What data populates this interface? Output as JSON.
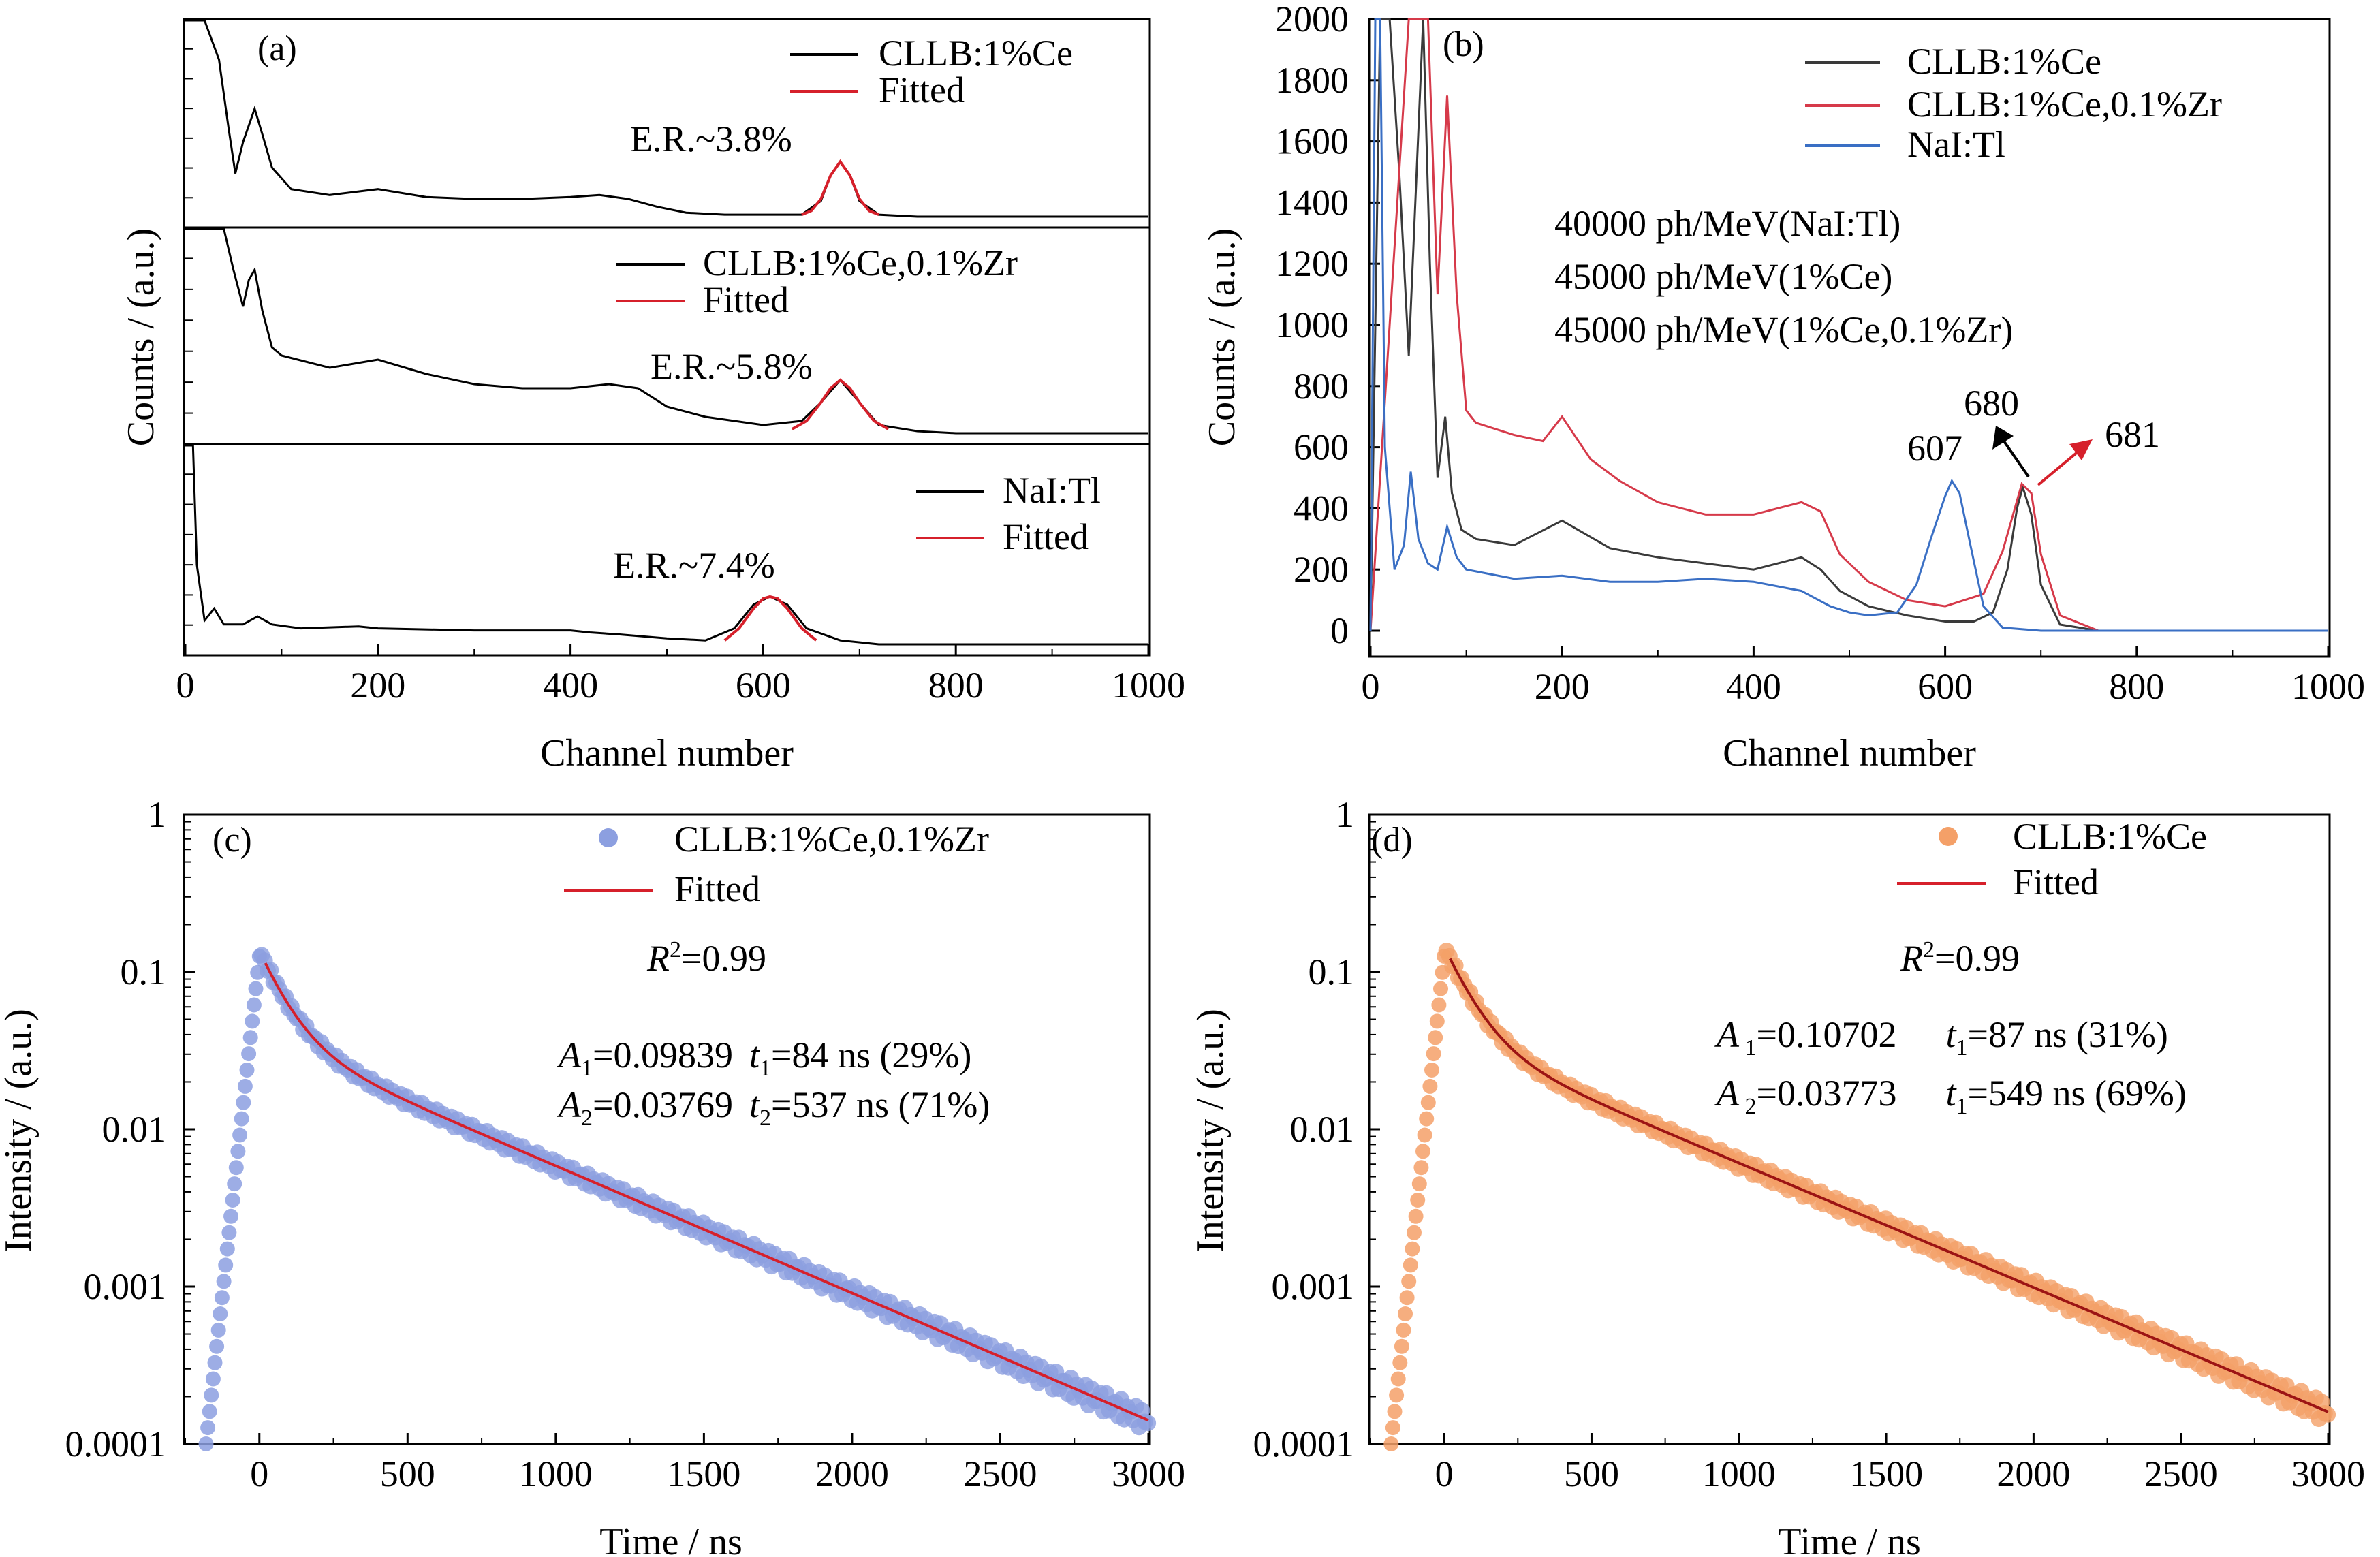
{
  "colors": {
    "black": "#000000",
    "red": "#d6202b",
    "dark_grey": "#3a3a3a",
    "crimson": "#d63a4a",
    "blue": "#3a6fc4",
    "lavender": "#8c9fe0",
    "orange": "#f4a068",
    "dark_red": "#9c1414"
  },
  "chart_data": [
    {
      "panel": "(a)",
      "type": "line",
      "xlabel": "Channel number",
      "ylabel": "Counts / (a.u.)",
      "xlim": [
        0,
        1000
      ],
      "x_ticks": [
        "0",
        "200",
        "400",
        "600",
        "800",
        "1000"
      ],
      "subpanels": [
        {
          "legend": [
            "CLLB:1%Ce",
            "Fitted"
          ],
          "annotation": "E.R.~3.8%",
          "series": [
            {
              "name": "CLLB:1%Ce",
              "x": [
                0,
                20,
                35,
                45,
                52,
                60,
                72,
                80,
                90,
                110,
                150,
                200,
                250,
                300,
                350,
                400,
                430,
                460,
                490,
                520,
                560,
                600,
                640,
                660,
                670,
                680,
                690,
                700,
                720,
                760,
                800,
                1000
              ],
              "y": [
                100,
                100,
                80,
                45,
                22,
                38,
                55,
                42,
                25,
                14,
                11,
                14,
                10,
                9,
                9,
                10,
                11,
                9,
                5,
                2,
                1,
                1,
                1,
                8,
                21,
                28,
                21,
                8,
                1,
                0,
                0,
                0
              ]
            },
            {
              "name": "Fitted",
              "x": [
                640,
                650,
                660,
                670,
                680,
                690,
                700,
                710,
                720
              ],
              "y": [
                1,
                3,
                9,
                21,
                28,
                21,
                9,
                3,
                1
              ]
            }
          ]
        },
        {
          "legend": [
            "CLLB:1%Ce,0.1%Zr",
            "Fitted"
          ],
          "annotation": "E.R.~5.8%",
          "series": [
            {
              "name": "CLLB:1%Ce,0.1%Zr",
              "x": [
                0,
                40,
                50,
                60,
                66,
                72,
                80,
                90,
                100,
                150,
                200,
                250,
                300,
                350,
                400,
                440,
                470,
                500,
                540,
                600,
                640,
                660,
                680,
                700,
                720,
                760,
                800,
                1000
              ],
              "y": [
                100,
                100,
                80,
                62,
                75,
                80,
                60,
                42,
                38,
                32,
                36,
                29,
                24,
                22,
                22,
                24,
                22,
                13,
                8,
                4,
                6,
                15,
                26,
                15,
                4,
                1,
                0,
                0
              ]
            },
            {
              "name": "Fitted",
              "x": [
                630,
                645,
                660,
                670,
                680,
                690,
                700,
                715,
                730
              ],
              "y": [
                2,
                6,
                15,
                22,
                26,
                22,
                15,
                6,
                2
              ]
            }
          ]
        },
        {
          "legend": [
            "NaI:Tl",
            "Fitted"
          ],
          "annotation": "E.R.~7.4%",
          "series": [
            {
              "name": "NaI:Tl",
              "x": [
                0,
                8,
                12,
                20,
                30,
                40,
                60,
                75,
                90,
                120,
                180,
                200,
                300,
                400,
                420,
                450,
                500,
                540,
                570,
                590,
                607,
                625,
                645,
                680,
                720,
                800,
                1000
              ],
              "y": [
                100,
                100,
                40,
                12,
                18,
                10,
                10,
                14,
                10,
                8,
                9,
                8,
                7,
                7,
                6,
                5,
                3,
                2,
                8,
                20,
                24,
                20,
                8,
                2,
                0,
                0,
                0
              ]
            },
            {
              "name": "Fitted",
              "x": [
                560,
                575,
                590,
                600,
                607,
                615,
                625,
                640,
                655
              ],
              "y": [
                2,
                8,
                18,
                23,
                24,
                23,
                18,
                8,
                2
              ]
            }
          ]
        }
      ]
    },
    {
      "panel": "(b)",
      "type": "line",
      "xlabel": "Channel number",
      "ylabel": "Counts / (a.u.)",
      "xlim": [
        0,
        1000
      ],
      "ylim": [
        0,
        2000
      ],
      "x_ticks": [
        "0",
        "200",
        "400",
        "600",
        "800",
        "1000"
      ],
      "y_ticks": [
        "0",
        "200",
        "400",
        "600",
        "800",
        "1000",
        "1200",
        "1400",
        "1600",
        "1800",
        "2000"
      ],
      "legend": [
        "CLLB:1%Ce",
        "CLLB:1%Ce,0.1%Zr",
        "NaI:Tl"
      ],
      "annotations": [
        "40000 ph/MeV(NaI:Tl)",
        "45000 ph/MeV(1%Ce)",
        "45000 ph/MeV(1%Ce,0.1%Zr)",
        "607",
        "680",
        "681"
      ],
      "series": [
        {
          "name": "CLLB:1%Ce",
          "x": [
            0,
            10,
            20,
            30,
            40,
            55,
            62,
            70,
            78,
            85,
            95,
            110,
            150,
            200,
            250,
            300,
            350,
            400,
            450,
            470,
            490,
            520,
            560,
            600,
            630,
            650,
            665,
            675,
            681,
            690,
            700,
            720,
            760,
            1000
          ],
          "y": [
            0,
            2000,
            2000,
            1500,
            900,
            2000,
            1200,
            500,
            700,
            450,
            330,
            300,
            280,
            360,
            270,
            240,
            220,
            200,
            240,
            200,
            130,
            80,
            50,
            30,
            30,
            60,
            200,
            400,
            470,
            380,
            150,
            20,
            0,
            0
          ]
        },
        {
          "name": "CLLB:1%Ce,0.1%Zr",
          "x": [
            0,
            40,
            55,
            60,
            70,
            80,
            90,
            100,
            110,
            150,
            180,
            200,
            230,
            260,
            300,
            350,
            400,
            450,
            470,
            490,
            520,
            560,
            600,
            640,
            660,
            680,
            690,
            700,
            720,
            760,
            1000
          ],
          "y": [
            0,
            2000,
            2000,
            2000,
            1100,
            1750,
            1100,
            720,
            680,
            640,
            620,
            700,
            560,
            490,
            420,
            380,
            380,
            420,
            390,
            250,
            160,
            100,
            80,
            120,
            260,
            480,
            450,
            250,
            50,
            0,
            0
          ]
        },
        {
          "name": "NaI:Tl",
          "x": [
            0,
            5,
            10,
            15,
            25,
            35,
            42,
            50,
            60,
            70,
            80,
            90,
            100,
            150,
            200,
            250,
            300,
            350,
            400,
            450,
            480,
            500,
            520,
            550,
            570,
            585,
            600,
            607,
            615,
            625,
            640,
            660,
            700,
            800,
            1000
          ],
          "y": [
            0,
            2000,
            2000,
            600,
            200,
            280,
            520,
            300,
            220,
            200,
            340,
            240,
            200,
            170,
            180,
            160,
            160,
            170,
            160,
            130,
            80,
            60,
            50,
            60,
            150,
            300,
            440,
            490,
            450,
            300,
            80,
            10,
            0,
            0,
            0
          ]
        }
      ]
    },
    {
      "panel": "(c)",
      "type": "scatter",
      "xlabel": "Time / ns",
      "ylabel": "Intensity / (a.u.)",
      "xlim": [
        -250,
        3000
      ],
      "ylim": [
        0.0001,
        1
      ],
      "y_scale": "log",
      "x_ticks": [
        "0",
        "500",
        "1000",
        "1500",
        "2000",
        "2500",
        "3000"
      ],
      "y_ticks": [
        "0.0001",
        "0.001",
        "0.01",
        "0.1",
        "1"
      ],
      "legend": [
        "CLLB:1%Ce,0.1%Zr",
        "Fitted"
      ],
      "fit": {
        "A1": 0.09839,
        "t1": 84,
        "A2": 0.03769,
        "t2": 537
      },
      "annotations": {
        "r2": "R²=0.99",
        "line1": "A₁=0.09839 t₁=84 ns (29%)",
        "line2": "A₂=0.03769 t₂=537 ns (71%)"
      }
    },
    {
      "panel": "(d)",
      "type": "scatter",
      "xlabel": "Time / ns",
      "ylabel": "Intensity / (a.u.)",
      "xlim": [
        -250,
        3000
      ],
      "ylim": [
        0.0001,
        1
      ],
      "y_scale": "log",
      "x_ticks": [
        "0",
        "500",
        "1000",
        "1500",
        "2000",
        "2500",
        "3000"
      ],
      "y_ticks": [
        "0.0001",
        "0.001",
        "0.01",
        "0.1",
        "1"
      ],
      "legend": [
        "CLLB:1%Ce",
        "Fitted"
      ],
      "fit": {
        "A1": 0.10702,
        "t1": 87,
        "A2": 0.03773,
        "t2": 549
      },
      "annotations": {
        "r2": "R²=0.99",
        "line1": "A 1=0.10702 t₁=87 ns (31%)",
        "line2": "A 2=0.03773 t₁=549 ns (69%)"
      }
    }
  ],
  "text": {
    "a": {
      "label": "(a)",
      "xlabel": "Channel number",
      "ylabel": "Counts / (a.u.)",
      "leg1": "CLLB:1%Ce",
      "leg2": "CLLB:1%Ce,0.1%Zr",
      "leg3": "NaI:Tl",
      "fitted": "Fitted",
      "er1": "E.R.~3.8%",
      "er2": "E.R.~5.8%",
      "er3": "E.R.~7.4%"
    },
    "b": {
      "label": "(b)",
      "xlabel": "Channel number",
      "ylabel": "Counts / (a.u.)",
      "leg1": "CLLB:1%Ce",
      "leg2": "CLLB:1%Ce,0.1%Zr",
      "leg3": "NaI:Tl",
      "ly1": "40000 ph/MeV(NaI:Tl)",
      "ly2": "45000 ph/MeV(1%Ce)",
      "ly3": "45000 ph/MeV(1%Ce,0.1%Zr)",
      "p607": "607",
      "p680": "680",
      "p681": "681"
    },
    "c": {
      "label": "(c)",
      "xlabel": "Time / ns",
      "ylabel": "Intensity / (a.u.)",
      "leg1": "CLLB:1%Ce,0.1%Zr",
      "fitted": "Fitted",
      "r_main": "R",
      "r_sup": "2",
      "r_val": "=0.99",
      "a1": "A",
      "a1_sub": "1",
      "a1_val": "=0.09839",
      "t1": "t",
      "t1_sub": "1",
      "t1_val": "=84 ns (29%)",
      "a2": "A",
      "a2_sub": "2",
      "a2_val": "=0.03769",
      "t2": "t",
      "t2_sub": "2",
      "t2_val": "=537 ns (71%)"
    },
    "d": {
      "label": "(d)",
      "xlabel": "Time / ns",
      "ylabel": "Intensity / (a.u.)",
      "leg1": "CLLB:1%Ce",
      "fitted": "Fitted",
      "r_main": "R",
      "r_sup": "2",
      "r_val": "=0.99",
      "a1": "A",
      "a1_sub": " 1",
      "a1_val": "=0.10702",
      "t1": "t",
      "t1_sub": "1",
      "t1_val": "=87 ns (31%)",
      "a2": "A",
      "a2_sub": " 2",
      "a2_val": "=0.03773",
      "t2": "t",
      "t2_sub": "1",
      "t2_val": "=549 ns (69%)"
    }
  }
}
